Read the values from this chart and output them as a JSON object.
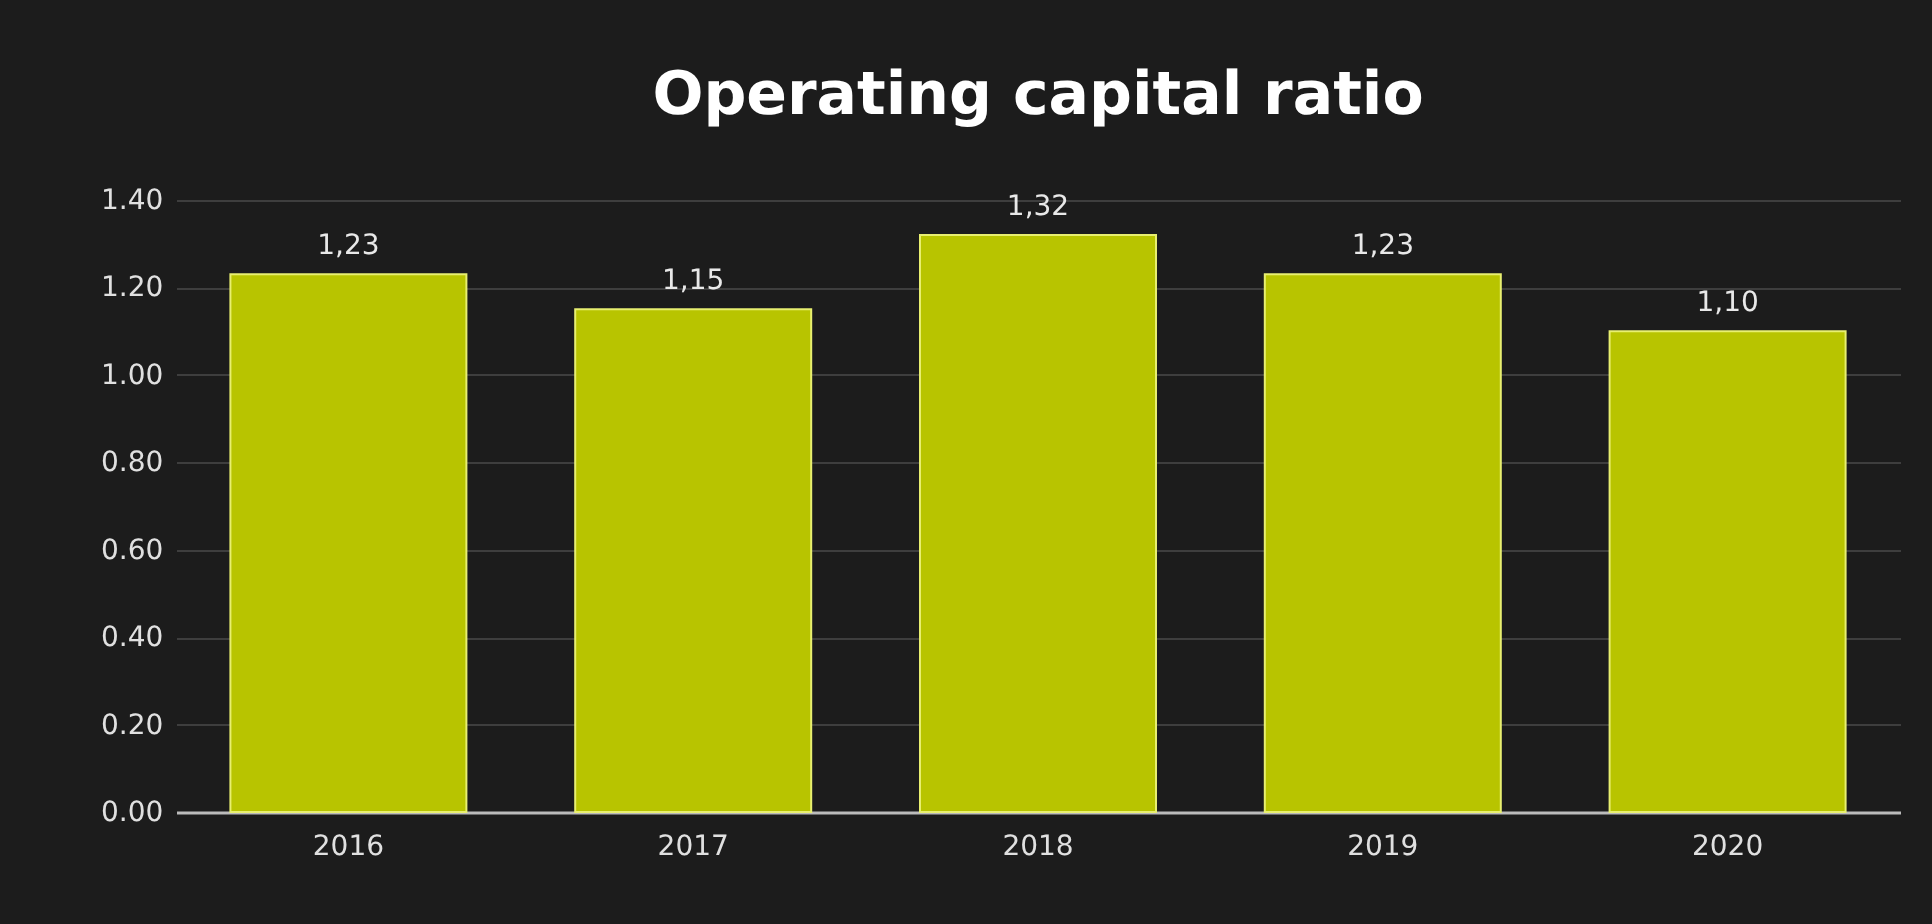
{
  "chart_data": {
    "type": "bar",
    "title": "Operating capital ratio",
    "categories": [
      "2016",
      "2017",
      "2018",
      "2019",
      "2020"
    ],
    "values": [
      1.23,
      1.15,
      1.32,
      1.23,
      1.1
    ],
    "value_labels": [
      "1,23",
      "1,15",
      "1,32",
      "1,23",
      "1,10"
    ],
    "color": "#b8c400",
    "ylim": [
      0,
      1.4
    ],
    "yticks": [
      {
        "value": 0,
        "label": "0.00"
      },
      {
        "value": 0.2,
        "label": "0.20"
      },
      {
        "value": 0.4,
        "label": "0.40"
      },
      {
        "value": 0.6,
        "label": "0.60"
      },
      {
        "value": 0.8,
        "label": "0.80"
      },
      {
        "value": 1,
        "label": "1.00"
      },
      {
        "value": 1.2,
        "label": "1.20"
      },
      {
        "value": 1.4,
        "label": "1.40"
      }
    ],
    "grid": "y"
  }
}
